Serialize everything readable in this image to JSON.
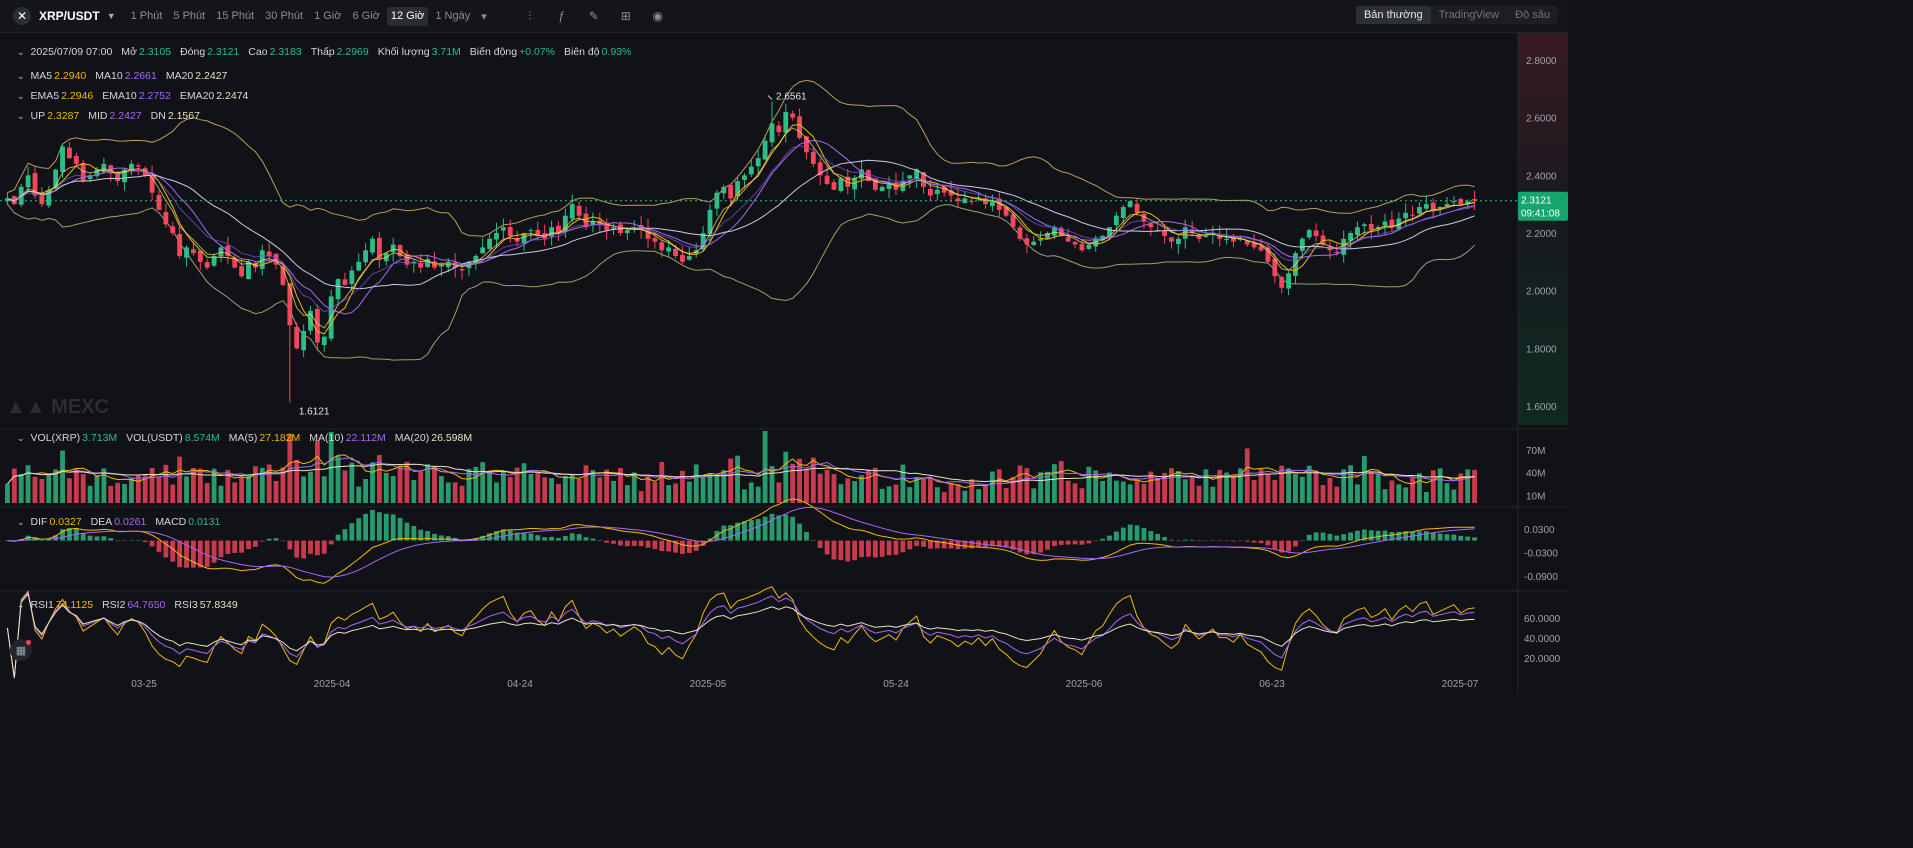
{
  "toolbar": {
    "symbol": "XRP/USDT",
    "timeframes": [
      "1 Phút",
      "5 Phút",
      "15 Phút",
      "30 Phút",
      "1 Giờ",
      "6 Giờ",
      "12 Giờ",
      "1 Ngày"
    ],
    "active_timeframe": "12 Giờ",
    "view_modes": [
      "Bản thường",
      "TradingView",
      "Độ sâu"
    ],
    "active_view": "Bản thường"
  },
  "info": {
    "date": "2025/07/09 07:00",
    "open_label": "Mở",
    "open": "2.3105",
    "close_label": "Đóng",
    "close": "2.3121",
    "high_label": "Cao",
    "high": "2.3183",
    "low_label": "Thấp",
    "low": "2.2969",
    "vol_label": "Khối lượng",
    "vol": "3.71M",
    "change_label": "Biến động",
    "change": "+0.07%",
    "amp_label": "Biên độ",
    "amp": "0.93%"
  },
  "ma": {
    "ma5_label": "MA5",
    "ma5": "2.2940",
    "ma10_label": "MA10",
    "ma10": "2.2661",
    "ma20_label": "MA20",
    "ma20": "2.2427"
  },
  "ema": {
    "ema5_label": "EMA5",
    "ema5": "2.2946",
    "ema10_label": "EMA10",
    "ema10": "2.2752",
    "ema20_label": "EMA20",
    "ema20": "2.2474"
  },
  "boll": {
    "up_label": "UP",
    "up": "2.3287",
    "mid_label": "MID",
    "mid": "2.2427",
    "dn_label": "DN",
    "dn": "2.1567"
  },
  "volume_legend": {
    "vol_xrp_label": "VOL(XRP)",
    "vol_xrp": "3.713M",
    "vol_usdt_label": "VOL(USDT)",
    "vol_usdt": "8.574M",
    "ma5_label": "MA(5)",
    "ma5": "27.182M",
    "ma10_label": "MA(10)",
    "ma10": "22.112M",
    "ma20_label": "MA(20)",
    "ma20": "26.598M"
  },
  "macd_legend": {
    "dif_label": "DIF",
    "dif": "0.0327",
    "dea_label": "DEA",
    "dea": "0.0261",
    "macd_label": "MACD",
    "macd": "0.0131"
  },
  "rsi_legend": {
    "rsi1_label": "RSI1",
    "rsi1": "74.1125",
    "rsi2_label": "RSI2",
    "rsi2": "64.7650",
    "rsi3_label": "RSI3",
    "rsi3": "57.8349"
  },
  "watermark": "MEXC",
  "price_tag": {
    "price": "2.3121",
    "countdown": "09:41:08"
  },
  "colors": {
    "up": "#2ebd85",
    "down": "#f6465d",
    "ma5": "#f0b90b",
    "ma10": "#a867f2",
    "ma20": "#e8e2c0",
    "boll": "#d8b56a",
    "accent_green": "#16a56c"
  },
  "chart_data": {
    "type": "candlestick",
    "price_axis_ticks": [
      2.8,
      2.6,
      2.4,
      2.2,
      2.0,
      1.8,
      1.6
    ],
    "price_axis_labels": [
      "2.8000",
      "2.6000",
      "2.4000",
      "2.2000",
      "2.0000",
      "1.8000",
      "1.6000"
    ],
    "x_axis_labels": [
      "03-25",
      "2025-04",
      "04-24",
      "2025-05",
      "05-24",
      "2025-06",
      "06-23",
      "2025-07"
    ],
    "high_marker": "2.6561",
    "low_marker": "1.6121",
    "volume_axis_labels": [
      "70M",
      "40M",
      "10M"
    ],
    "volume_axis_values": [
      70,
      40,
      10
    ],
    "macd_axis_labels": [
      "0.0300",
      "-0.0300",
      "-0.0900"
    ],
    "macd_axis_values": [
      0.03,
      -0.03,
      -0.09
    ],
    "rsi_axis_labels": [
      "60.0000",
      "40.0000",
      "20.0000"
    ],
    "rsi_axis_values": [
      60,
      40,
      20
    ],
    "closes": [
      2.32,
      2.3,
      2.36,
      2.4,
      2.33,
      2.3,
      2.35,
      2.42,
      2.5,
      2.46,
      2.44,
      2.38,
      2.4,
      2.42,
      2.44,
      2.41,
      2.38,
      2.42,
      2.44,
      2.43,
      2.4,
      2.34,
      2.28,
      2.23,
      2.2,
      2.12,
      2.15,
      2.13,
      2.1,
      2.08,
      2.12,
      2.15,
      2.12,
      2.08,
      2.05,
      2.1,
      2.08,
      2.14,
      2.12,
      2.09,
      2.02,
      1.88,
      1.8,
      1.86,
      1.93,
      1.82,
      1.84,
      1.98,
      2.04,
      2.02,
      2.07,
      2.1,
      2.14,
      2.18,
      2.11,
      2.13,
      2.16,
      2.12,
      2.09,
      2.1,
      2.08,
      2.11,
      2.08,
      2.09,
      2.1,
      2.08,
      2.07,
      2.1,
      2.12,
      2.15,
      2.18,
      2.2,
      2.22,
      2.19,
      2.17,
      2.2,
      2.21,
      2.19,
      2.18,
      2.22,
      2.2,
      2.26,
      2.3,
      2.26,
      2.22,
      2.24,
      2.23,
      2.21,
      2.22,
      2.2,
      2.21,
      2.22,
      2.21,
      2.18,
      2.17,
      2.14,
      2.15,
      2.12,
      2.1,
      2.12,
      2.14,
      2.2,
      2.28,
      2.34,
      2.36,
      2.32,
      2.38,
      2.4,
      2.43,
      2.46,
      2.52,
      2.58,
      2.55,
      2.62,
      2.6,
      2.53,
      2.48,
      2.44,
      2.4,
      2.37,
      2.35,
      2.39,
      2.36,
      2.39,
      2.42,
      2.38,
      2.35,
      2.36,
      2.37,
      2.35,
      2.38,
      2.4,
      2.42,
      2.36,
      2.33,
      2.35,
      2.34,
      2.33,
      2.31,
      2.32,
      2.31,
      2.32,
      2.3,
      2.31,
      2.28,
      2.26,
      2.22,
      2.18,
      2.16,
      2.17,
      2.18,
      2.2,
      2.22,
      2.19,
      2.17,
      2.16,
      2.14,
      2.16,
      2.18,
      2.19,
      2.22,
      2.26,
      2.29,
      2.31,
      2.27,
      2.24,
      2.22,
      2.21,
      2.19,
      2.17,
      2.18,
      2.22,
      2.2,
      2.18,
      2.19,
      2.2,
      2.18,
      2.18,
      2.17,
      2.18,
      2.16,
      2.15,
      2.14,
      2.1,
      2.05,
      2.01,
      2.06,
      2.13,
      2.18,
      2.21,
      2.19,
      2.16,
      2.14,
      2.13,
      2.18,
      2.2,
      2.22,
      2.23,
      2.21,
      2.22,
      2.24,
      2.22,
      2.25,
      2.27,
      2.26,
      2.29,
      2.3,
      2.28,
      2.29,
      2.3,
      2.31,
      2.3,
      2.31,
      2.3121
    ]
  }
}
